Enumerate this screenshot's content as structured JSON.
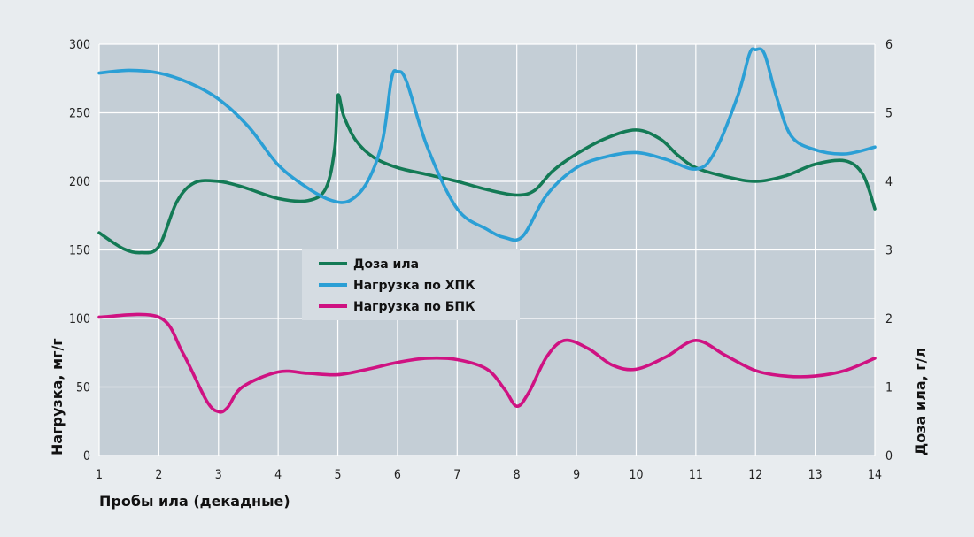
{
  "chart_data": {
    "type": "line",
    "xlabel": "Пробы ила (декадные)",
    "ylabel_left": "Нагрузка, мг/г",
    "ylabel_right": "Доза ила, г/л",
    "x_ticks": [
      "1",
      "2",
      "3",
      "4",
      "5",
      "6",
      "7",
      "8",
      "9",
      "10",
      "11",
      "12",
      "13",
      "14"
    ],
    "y_left_ticks": [
      "0",
      "50",
      "100",
      "150",
      "200",
      "250",
      "300"
    ],
    "y_right_ticks": [
      "0",
      "1",
      "2",
      "3",
      "4",
      "5",
      "6"
    ],
    "xlim": [
      1,
      14
    ],
    "ylim_left": [
      0,
      300
    ],
    "ylim_right": [
      0,
      6
    ],
    "grid": true,
    "legend_position": "center-left",
    "series": [
      {
        "name": "Доза ила",
        "axis": "right",
        "color": "#137a55",
        "points": [
          [
            1,
            3.25
          ],
          [
            1.4,
            3.02
          ],
          [
            1.7,
            2.96
          ],
          [
            2.0,
            3.05
          ],
          [
            2.3,
            3.7
          ],
          [
            2.6,
            3.98
          ],
          [
            3.0,
            4.0
          ],
          [
            3.4,
            3.92
          ],
          [
            4.0,
            3.75
          ],
          [
            4.5,
            3.72
          ],
          [
            4.8,
            3.9
          ],
          [
            4.95,
            4.5
          ],
          [
            5.0,
            5.25
          ],
          [
            5.1,
            4.95
          ],
          [
            5.3,
            4.6
          ],
          [
            5.6,
            4.35
          ],
          [
            6.0,
            4.2
          ],
          [
            6.5,
            4.1
          ],
          [
            7.0,
            4.0
          ],
          [
            7.5,
            3.88
          ],
          [
            8.0,
            3.8
          ],
          [
            8.3,
            3.87
          ],
          [
            8.6,
            4.15
          ],
          [
            9.0,
            4.4
          ],
          [
            9.5,
            4.63
          ],
          [
            10.0,
            4.75
          ],
          [
            10.4,
            4.62
          ],
          [
            10.7,
            4.38
          ],
          [
            11.0,
            4.2
          ],
          [
            11.5,
            4.07
          ],
          [
            12.0,
            4.0
          ],
          [
            12.5,
            4.08
          ],
          [
            13.0,
            4.25
          ],
          [
            13.5,
            4.3
          ],
          [
            13.8,
            4.1
          ],
          [
            14.0,
            3.6
          ]
        ]
      },
      {
        "name": "Нагрузка по ХПК",
        "axis": "left",
        "color": "#2b9fd5",
        "points": [
          [
            1,
            279
          ],
          [
            1.5,
            281
          ],
          [
            2.0,
            279
          ],
          [
            2.5,
            272
          ],
          [
            3.0,
            260
          ],
          [
            3.5,
            240
          ],
          [
            4.0,
            212
          ],
          [
            4.5,
            195
          ],
          [
            4.9,
            186
          ],
          [
            5.2,
            186
          ],
          [
            5.5,
            200
          ],
          [
            5.75,
            230
          ],
          [
            5.9,
            275
          ],
          [
            6.0,
            280
          ],
          [
            6.15,
            273
          ],
          [
            6.5,
            225
          ],
          [
            7.0,
            180
          ],
          [
            7.5,
            165
          ],
          [
            7.8,
            159
          ],
          [
            8.1,
            160
          ],
          [
            8.5,
            190
          ],
          [
            9.0,
            210
          ],
          [
            9.5,
            218
          ],
          [
            10.0,
            221
          ],
          [
            10.5,
            216
          ],
          [
            11.0,
            209
          ],
          [
            11.3,
            220
          ],
          [
            11.7,
            262
          ],
          [
            11.9,
            293
          ],
          [
            12.0,
            296
          ],
          [
            12.15,
            293
          ],
          [
            12.35,
            262
          ],
          [
            12.6,
            233
          ],
          [
            13.0,
            223
          ],
          [
            13.5,
            220
          ],
          [
            14.0,
            225
          ]
        ]
      },
      {
        "name": "Нагрузка по БПК",
        "axis": "left",
        "color": "#cf1282",
        "points": [
          [
            1,
            101
          ],
          [
            2.0,
            101
          ],
          [
            2.4,
            75
          ],
          [
            2.8,
            40
          ],
          [
            3.0,
            32
          ],
          [
            3.15,
            35
          ],
          [
            3.4,
            50
          ],
          [
            4.0,
            61
          ],
          [
            4.5,
            60
          ],
          [
            5.0,
            59
          ],
          [
            5.5,
            63
          ],
          [
            6.0,
            68
          ],
          [
            6.5,
            71
          ],
          [
            7.0,
            70
          ],
          [
            7.5,
            63
          ],
          [
            7.8,
            48
          ],
          [
            8.0,
            36
          ],
          [
            8.2,
            46
          ],
          [
            8.5,
            72
          ],
          [
            8.8,
            84
          ],
          [
            9.2,
            78
          ],
          [
            9.6,
            66
          ],
          [
            10.0,
            63
          ],
          [
            10.5,
            72
          ],
          [
            11.0,
            84
          ],
          [
            11.5,
            73
          ],
          [
            12.0,
            62
          ],
          [
            12.5,
            58
          ],
          [
            13.0,
            58
          ],
          [
            13.5,
            62
          ],
          [
            14.0,
            71
          ]
        ]
      }
    ]
  }
}
